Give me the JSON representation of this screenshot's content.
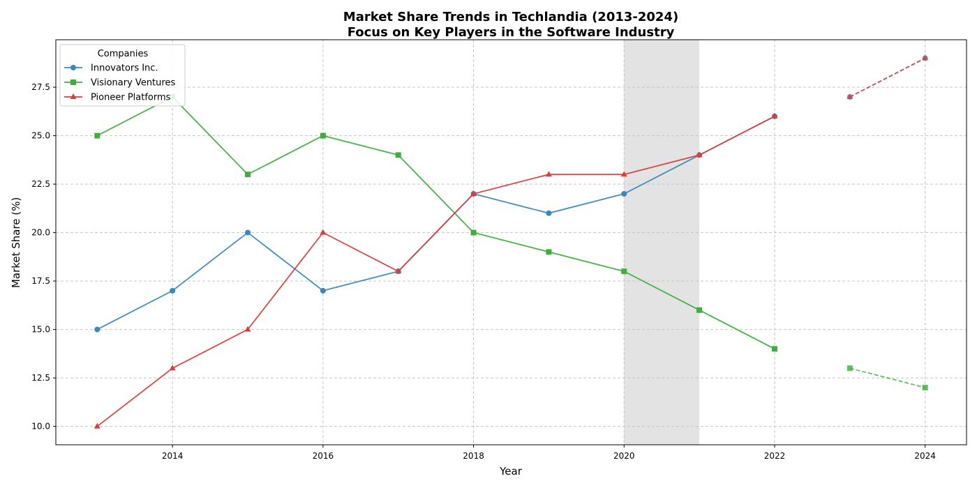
{
  "chart_data": {
    "type": "line",
    "title": "Market Share Trends in Techlandia (2013-2024)",
    "subtitle": "Focus on Key Players in the Software Industry",
    "xlabel": "Year",
    "ylabel": "Market Share (%)",
    "xlim": [
      2012.45,
      2024.55
    ],
    "ylim": [
      9.05,
      29.95
    ],
    "x_ticks": [
      2014,
      2016,
      2018,
      2020,
      2022,
      2024
    ],
    "x_tick_labels": [
      "2014",
      "2016",
      "2018",
      "2020",
      "2022",
      "2024"
    ],
    "y_ticks": [
      10.0,
      12.5,
      15.0,
      17.5,
      20.0,
      22.5,
      25.0,
      27.5
    ],
    "y_tick_labels": [
      "10.0",
      "12.5",
      "15.0",
      "17.5",
      "20.0",
      "22.5",
      "25.0",
      "27.5"
    ],
    "grid": true,
    "legend_title": "Companies",
    "legend_position": "top-left",
    "shaded_region": {
      "x_start": 2020,
      "x_end": 2021,
      "color": "#e3e3e3"
    },
    "series": [
      {
        "name": "Innovators Inc.",
        "color": "#3a87bd",
        "marker": "circle",
        "x": [
          2013,
          2014,
          2015,
          2016,
          2017,
          2018,
          2019,
          2020,
          2021,
          2022
        ],
        "values": [
          15,
          17,
          20,
          17,
          18,
          22,
          21,
          22,
          24,
          26
        ],
        "projection": {
          "x": [
            2023,
            2024
          ],
          "values": [
            27,
            29
          ]
        }
      },
      {
        "name": "Visionary Ventures",
        "color": "#3fae3f",
        "marker": "square",
        "x": [
          2013,
          2014,
          2015,
          2016,
          2017,
          2018,
          2019,
          2020,
          2021,
          2022
        ],
        "values": [
          25,
          27,
          23,
          25,
          24,
          20,
          19,
          18,
          16,
          14
        ],
        "projection": {
          "x": [
            2023,
            2024
          ],
          "values": [
            13,
            12
          ]
        }
      },
      {
        "name": "Pioneer Platforms",
        "color": "#d83e3e",
        "marker": "triangle",
        "x": [
          2013,
          2014,
          2015,
          2016,
          2017,
          2018,
          2019,
          2020,
          2021,
          2022
        ],
        "values": [
          10,
          13,
          15,
          20,
          18,
          22,
          23,
          23,
          24,
          26
        ],
        "projection": {
          "x": [
            2023,
            2024
          ],
          "values": [
            27,
            29
          ]
        }
      }
    ]
  }
}
